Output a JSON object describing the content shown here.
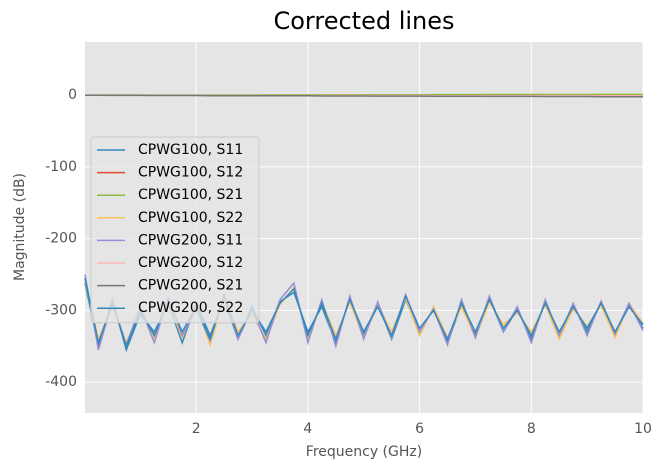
{
  "chart_data": {
    "type": "line",
    "title": "Corrected lines",
    "x_label": "Frequency (GHz)",
    "y_label": "Magnitude (dB)",
    "x": [
      0.01,
      0.25,
      0.5,
      0.75,
      1,
      1.25,
      1.5,
      1.75,
      2,
      2.25,
      2.5,
      2.75,
      3,
      3.25,
      3.5,
      3.75,
      4,
      4.25,
      4.5,
      4.75,
      5,
      5.25,
      5.5,
      5.75,
      6,
      6.25,
      6.5,
      6.75,
      7,
      7.25,
      7.5,
      7.75,
      8,
      8.25,
      8.5,
      8.75,
      9,
      9.25,
      9.5,
      9.75,
      10
    ],
    "series": [
      {
        "name": "CPWG100, S11",
        "color": "#348ABD",
        "values": [
          -262,
          -350,
          -285,
          -355,
          -305,
          -330,
          -290,
          -345,
          -290,
          -335,
          -285,
          -340,
          -295,
          -335,
          -288,
          -275,
          -330,
          -295,
          -345,
          -282,
          -335,
          -290,
          -340,
          -285,
          -330,
          -298,
          -345,
          -292,
          -335,
          -283,
          -330,
          -298,
          -340,
          -288,
          -335,
          -292,
          -330,
          -288,
          -335,
          -292,
          -325
        ]
      },
      {
        "name": "CPWG100, S12",
        "color": "#E24A33",
        "values": [
          -0.1,
          -0.1,
          -0.2,
          -0.2,
          -0.2,
          -0.3,
          -0.3,
          -0.3,
          -0.3,
          -0.4,
          -0.4,
          -0.4,
          -0.4,
          -0.5,
          -0.5,
          -0.5,
          -0.5,
          -0.6,
          -0.6,
          -0.6,
          -0.6,
          -0.7,
          -0.7,
          -0.7,
          -0.7,
          -0.8,
          -0.8,
          -0.8,
          -0.8,
          -0.9,
          -0.9,
          -0.9,
          -0.9,
          -1,
          -1,
          -1,
          -1,
          -1.1,
          -1.1,
          -1.1,
          -1.1
        ]
      },
      {
        "name": "CPWG100, S21",
        "color": "#8EBA42",
        "values": [
          0,
          0,
          0.1,
          0.1,
          0.1,
          0.2,
          0.2,
          0.2,
          0.2,
          0.3,
          0.3,
          0.3,
          0.3,
          0.4,
          0.4,
          0.4,
          0.4,
          0.5,
          0.5,
          0.5,
          0.5,
          0.6,
          0.6,
          0.6,
          0.6,
          0.7,
          0.7,
          0.7,
          0.7,
          0.8,
          0.8,
          0.8,
          0.8,
          0.9,
          0.9,
          0.9,
          0.9,
          1,
          1,
          1,
          1
        ]
      },
      {
        "name": "CPWG100, S22",
        "color": "#FBC15E",
        "values": [
          -258,
          -340,
          -295,
          -345,
          -298,
          -340,
          -288,
          -338,
          -292,
          -348,
          -283,
          -330,
          -305,
          -340,
          -292,
          -268,
          -340,
          -288,
          -335,
          -288,
          -338,
          -292,
          -330,
          -283,
          -335,
          -295,
          -338,
          -295,
          -338,
          -288,
          -320,
          -303,
          -330,
          -292,
          -340,
          -298,
          -322,
          -293,
          -338,
          -290,
          -318
        ]
      },
      {
        "name": "CPWG200, S11",
        "color": "#988ED5",
        "values": [
          -250,
          -355,
          -288,
          -348,
          -295,
          -345,
          -282,
          -335,
          -298,
          -342,
          -278,
          -340,
          -298,
          -345,
          -285,
          -262,
          -345,
          -285,
          -350,
          -280,
          -340,
          -288,
          -338,
          -278,
          -330,
          -298,
          -348,
          -285,
          -338,
          -280,
          -330,
          -295,
          -345,
          -285,
          -335,
          -290,
          -335,
          -287,
          -332,
          -290,
          -328
        ]
      },
      {
        "name": "CPWG200, S12",
        "color": "#FFB5B8",
        "values": [
          -0.1,
          -0.1,
          -0.2,
          -0.2,
          -0.2,
          -0.3,
          -0.3,
          -0.3,
          -0.3,
          -0.4,
          -0.4,
          -0.4,
          -0.4,
          -0.5,
          -0.5,
          -0.5,
          -0.5,
          -0.6,
          -0.6,
          -0.6,
          -0.6,
          -0.7,
          -0.7,
          -0.7,
          -0.7,
          -0.8,
          -0.8,
          -0.8,
          -0.8,
          -0.9,
          -0.9,
          -0.9,
          -0.9,
          -1,
          -1,
          -1,
          -1,
          -1.1,
          -1.1,
          -1.1,
          -1.1
        ]
      },
      {
        "name": "CPWG200, S21",
        "color": "#777777",
        "values": [
          -0.2,
          -0.2,
          -0.4,
          -0.4,
          -0.4,
          -0.6,
          -0.6,
          -0.6,
          -0.6,
          -0.8,
          -0.8,
          -0.8,
          -0.8,
          -1,
          -1,
          -1,
          -1,
          -1.2,
          -1.2,
          -1.2,
          -1.2,
          -1.4,
          -1.4,
          -1.4,
          -1.4,
          -1.6,
          -1.6,
          -1.6,
          -1.6,
          -1.8,
          -1.8,
          -1.8,
          -1.8,
          -2,
          -2,
          -2,
          -2,
          -2.2,
          -2.2,
          -2.2,
          -2.2
        ]
      },
      {
        "name": "CPWG200, S22",
        "color": "#348ABD",
        "values": [
          -255,
          -345,
          -290,
          -350,
          -300,
          -335,
          -285,
          -330,
          -295,
          -340,
          -280,
          -335,
          -300,
          -330,
          -290,
          -270,
          -335,
          -290,
          -340,
          -285,
          -330,
          -295,
          -335,
          -280,
          -325,
          -300,
          -340,
          -290,
          -330,
          -285,
          -325,
          -300,
          -335,
          -290,
          -330,
          -295,
          -325,
          -290,
          -330,
          -295,
          -320
        ]
      }
    ],
    "xlim": [
      0.01,
      10
    ],
    "ylim": [
      -443,
      74
    ],
    "xticks": [
      2,
      4,
      6,
      8,
      10
    ],
    "yticks": [
      0,
      -100,
      -200,
      -300,
      -400
    ],
    "grid": true,
    "legend": "left"
  }
}
